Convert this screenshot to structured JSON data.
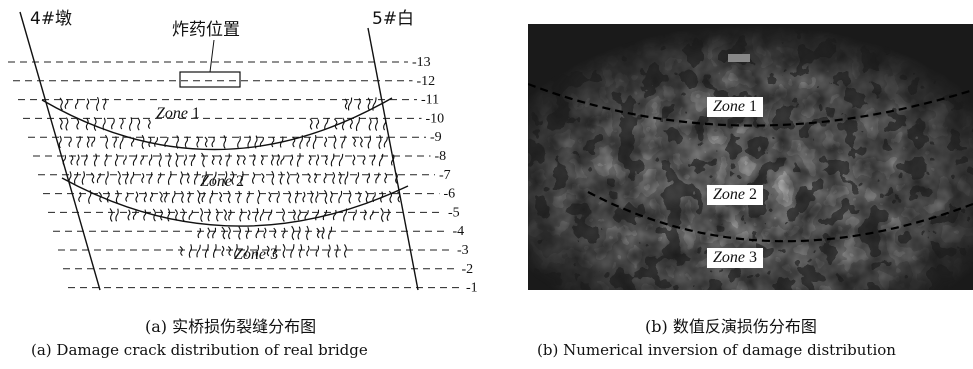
{
  "panel_a": {
    "pier_left_label": "4#墩",
    "pier_right_label": "5#白",
    "explosive_label": "炸药位置",
    "zones": [
      {
        "name": "Zone",
        "num": "1"
      },
      {
        "name": "Zone",
        "num": "2"
      },
      {
        "name": "Zone",
        "num": "3"
      }
    ],
    "levels": [
      "-13",
      "-12",
      "-11",
      "-10",
      "-9",
      "-8",
      "-7",
      "-6",
      "-5",
      "-4",
      "-3",
      "-2",
      "-1"
    ],
    "caption_cn": "(a) 实桥损伤裂缝分布图",
    "caption_en": "(a) Damage crack distribution of real bridge"
  },
  "panel_b": {
    "zones": [
      {
        "name": "Zone",
        "num": "1"
      },
      {
        "name": "Zone",
        "num": "2"
      },
      {
        "name": "Zone",
        "num": "3"
      }
    ],
    "caption_cn": "(b) 数值反演损伤分布图",
    "caption_en": "(b) Numerical inversion of damage distribution"
  }
}
